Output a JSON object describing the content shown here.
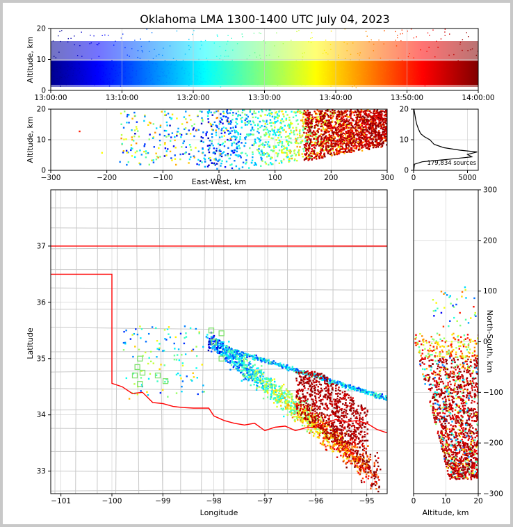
{
  "figure": {
    "title": "Oklahoma LMA 1300-1400 UTC July 04, 2023"
  },
  "chart_data": [
    {
      "panel": "time-altitude",
      "type": "scatter",
      "ylabel": "Altitude, km",
      "xlim": [
        "13:00:00",
        "14:00:00"
      ],
      "ylim": [
        0,
        20
      ],
      "x_tick_labels": [
        "13:00:00",
        "13:10:00",
        "13:20:00",
        "13:30:00",
        "13:40:00",
        "13:50:00",
        "14:00:00"
      ],
      "y_tick_labels": [
        "0",
        "10",
        "20"
      ],
      "colormap": "jet, colored by time",
      "altitude_band_km": [
        1,
        20
      ],
      "grid": true
    },
    {
      "panel": "east-west-altitude",
      "type": "scatter",
      "xlabel": "East-West, km",
      "ylabel": "Altitude, km",
      "xlim": [
        -300,
        300
      ],
      "ylim": [
        0,
        20
      ],
      "x_tick_labels": [
        "−300",
        "−200",
        "−100",
        "0",
        "100",
        "200",
        "300"
      ],
      "y_tick_labels": [
        "0",
        "10",
        "20"
      ],
      "clusters": [
        {
          "ew_range": [
            -50,
            300
          ],
          "alt_range": [
            0,
            20
          ],
          "density": "high"
        },
        {
          "ew_range": [
            -150,
            -50
          ],
          "alt_range": [
            2,
            20
          ],
          "density": "medium"
        },
        {
          "ew_range": [
            150,
            300
          ],
          "alt_range": [
            3,
            20
          ],
          "density": "very high"
        }
      ],
      "grid": true
    },
    {
      "panel": "altitude-histogram",
      "type": "line",
      "xlim": [
        0,
        6000
      ],
      "ylim": [
        0,
        20
      ],
      "x_tick_labels": [
        "0",
        "5000"
      ],
      "y_tick_labels": [
        "0",
        "10",
        "20"
      ],
      "annotation": "179,834 sources",
      "profile": [
        {
          "alt": 0,
          "count": 20
        },
        {
          "alt": 2,
          "count": 80
        },
        {
          "alt": 2.8,
          "count": 800
        },
        {
          "alt": 3.6,
          "count": 3200
        },
        {
          "alt": 4.4,
          "count": 5400
        },
        {
          "alt": 5.2,
          "count": 5000
        },
        {
          "alt": 6.0,
          "count": 5900
        },
        {
          "alt": 6.6,
          "count": 4300
        },
        {
          "alt": 7.4,
          "count": 2800
        },
        {
          "alt": 8.5,
          "count": 1900
        },
        {
          "alt": 10.0,
          "count": 1500
        },
        {
          "alt": 11.0,
          "count": 1000
        },
        {
          "alt": 12.0,
          "count": 650
        },
        {
          "alt": 13.5,
          "count": 450
        },
        {
          "alt": 15.0,
          "count": 300
        },
        {
          "alt": 16.5,
          "count": 200
        },
        {
          "alt": 18.0,
          "count": 130
        },
        {
          "alt": 19.5,
          "count": 60
        },
        {
          "alt": 20.0,
          "count": 40
        }
      ],
      "grid": true
    },
    {
      "panel": "plan-view-map",
      "type": "scatter",
      "xlabel": "Longitude",
      "ylabel": "Latitude",
      "xlim": [
        -101.2,
        -94.6
      ],
      "ylim": [
        32.6,
        38.0
      ],
      "x_tick_labels": [
        "−101",
        "−100",
        "−99",
        "−98",
        "−97",
        "−96",
        "−95"
      ],
      "y_tick_labels": [
        "33",
        "34",
        "35",
        "36",
        "37"
      ],
      "state_border_color": "#ff0000",
      "county_line_color": "#c8c8c8",
      "station_marker_color": "#7fe26e",
      "stations": [
        {
          "lon": -99.45,
          "lat": 35.0
        },
        {
          "lon": -99.5,
          "lat": 34.85
        },
        {
          "lon": -99.4,
          "lat": 34.75
        },
        {
          "lon": -99.55,
          "lat": 34.7
        },
        {
          "lon": -99.45,
          "lat": 34.55
        },
        {
          "lon": -99.1,
          "lat": 34.7
        },
        {
          "lon": -98.95,
          "lat": 34.6
        },
        {
          "lon": -98.05,
          "lat": 35.5
        },
        {
          "lon": -97.85,
          "lat": 35.45
        },
        {
          "lon": -97.85,
          "lat": 35.0
        },
        {
          "lon": -98.0,
          "lat": 35.3
        }
      ],
      "storm_core": {
        "lon_range": [
          -96.4,
          -95.0
        ],
        "lat_range": [
          33.5,
          34.8
        ]
      },
      "grid": true
    },
    {
      "panel": "altitude-north-south",
      "type": "scatter",
      "xlabel": "Altitude, km",
      "ylabel": "North-South, km",
      "xlim": [
        0,
        20
      ],
      "ylim": [
        -300,
        300
      ],
      "x_tick_labels": [
        "0",
        "10",
        "20"
      ],
      "y_tick_labels": [
        "−300",
        "−200",
        "−100",
        "0",
        "100",
        "200",
        "300"
      ],
      "grid": true
    }
  ]
}
